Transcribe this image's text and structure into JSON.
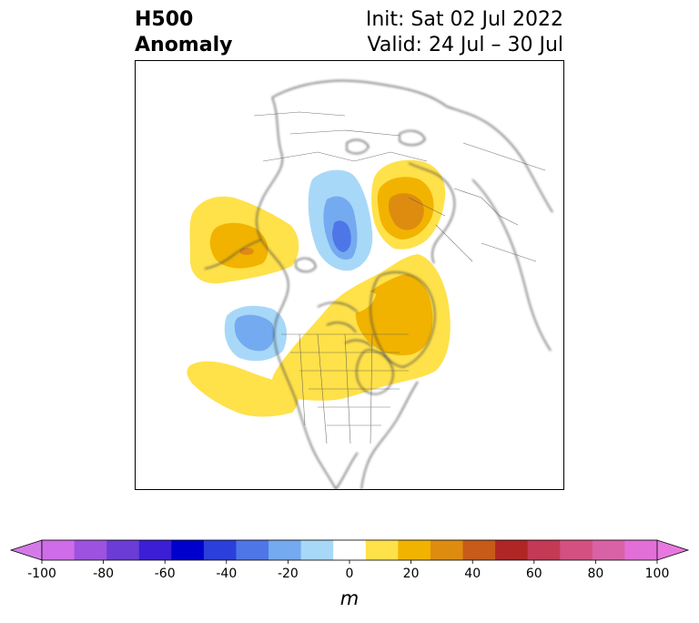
{
  "title": {
    "left_line1": "H500",
    "left_line2": "Anomaly",
    "right_line1": "Init: Sat 02 Jul 2022",
    "right_line2": "Valid: 24 Jul – 30 Jul"
  },
  "colorbar": {
    "unit": "m",
    "ticks": [
      "-100",
      "-80",
      "-60",
      "-40",
      "-20",
      "0",
      "20",
      "40",
      "60",
      "80",
      "100"
    ],
    "colors": [
      "#cf6de8",
      "#9e52e0",
      "#6b3dd6",
      "#3c1fd4",
      "#0000cc",
      "#2a3fdc",
      "#4f76e6",
      "#74aaf0",
      "#a8d8f8",
      "#ffffff",
      "#ffe14a",
      "#f2b300",
      "#de8c10",
      "#c85a1a",
      "#b02626",
      "#c23a55",
      "#d35080",
      "#d862a5",
      "#e26fd8"
    ],
    "min_color": "#d47ae8",
    "max_color": "#e878e0"
  },
  "anomaly_colors": {
    "light_blue": "#a8d8f8",
    "mid_blue": "#74aaf0",
    "blue": "#4f76e6",
    "yellow": "#ffe14a",
    "gold": "#f2b300",
    "orange": "#de8c10",
    "dark_orange": "#c85a1a"
  }
}
